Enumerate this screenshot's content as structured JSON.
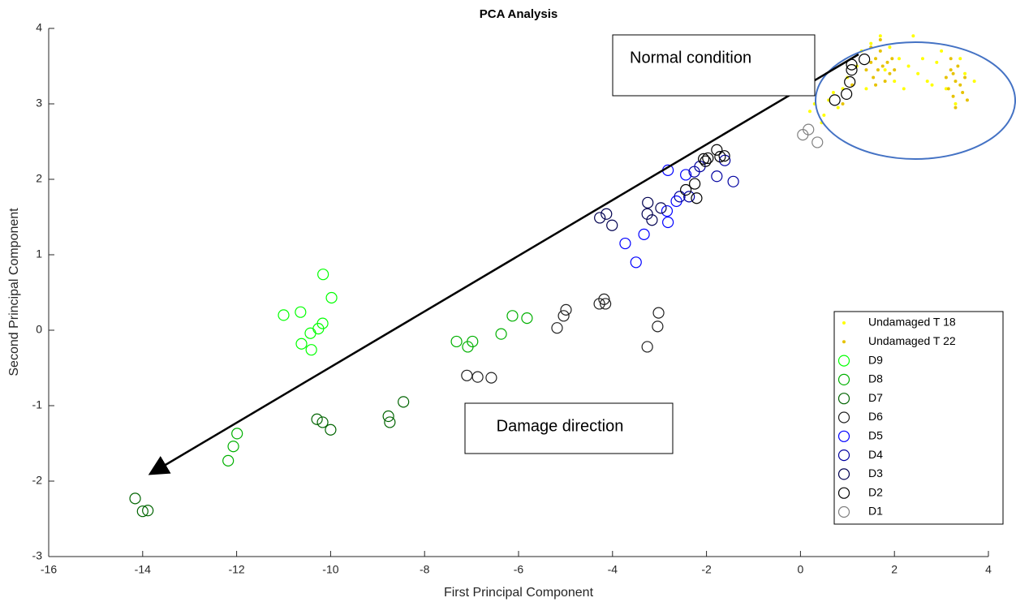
{
  "chart_data": {
    "type": "scatter",
    "title": "PCA Analysis",
    "x_label": "First Principal Component",
    "y_label": "Second Principal Component",
    "annotations": [
      "Normal condition",
      "Damage direction"
    ],
    "xlim": [
      -16,
      4
    ],
    "ylim": [
      -3,
      4
    ],
    "xticks": [
      -16,
      -14,
      -12,
      -10,
      -8,
      -6,
      -4,
      -2,
      0,
      2,
      4
    ],
    "yticks": [
      -3,
      -2,
      -1,
      0,
      1,
      2,
      3,
      4
    ],
    "grid": false,
    "legend": "southeast",
    "series": [
      {
        "name": "Undamaged T 18",
        "color": "#ffff00",
        "marker": "dot",
        "x": [
          0.2,
          0.3,
          0.45,
          0.6,
          0.8,
          0.9,
          1.0,
          1.2,
          1.3,
          1.5,
          1.7,
          1.9,
          2.1,
          2.3,
          2.5,
          2.7,
          2.9,
          3.0,
          3.1,
          3.3,
          3.5,
          3.7,
          2.0,
          2.2,
          1.4,
          0.5,
          0.7,
          1.8,
          2.6,
          2.4,
          3.4,
          2.8
        ],
        "values": [
          2.9,
          3.0,
          2.75,
          3.05,
          2.95,
          3.2,
          3.35,
          3.5,
          3.7,
          3.8,
          3.9,
          3.75,
          3.6,
          3.5,
          3.4,
          3.3,
          3.55,
          3.7,
          3.2,
          3.0,
          3.4,
          3.3,
          3.3,
          3.2,
          3.2,
          2.85,
          3.15,
          3.45,
          3.6,
          3.9,
          3.6,
          3.25
        ]
      },
      {
        "name": "Undamaged T 22",
        "color": "#e6c200",
        "marker": "dot",
        "x": [
          1.4,
          1.5,
          1.55,
          1.6,
          1.65,
          1.7,
          1.75,
          1.8,
          1.85,
          1.9,
          1.6,
          1.5,
          1.95,
          2.0,
          1.7,
          3.1,
          3.15,
          3.2,
          3.25,
          3.3,
          3.35,
          3.4,
          3.45,
          3.5,
          3.3,
          3.2,
          3.55,
          3.25,
          0.9,
          1.1
        ],
        "values": [
          3.45,
          3.55,
          3.35,
          3.6,
          3.45,
          3.7,
          3.5,
          3.3,
          3.55,
          3.4,
          3.25,
          3.75,
          3.6,
          3.45,
          3.85,
          3.35,
          3.2,
          3.45,
          3.1,
          3.3,
          3.5,
          3.25,
          3.15,
          3.35,
          2.95,
          3.6,
          3.05,
          3.4,
          3.0,
          3.25
        ]
      },
      {
        "name": "D9",
        "color": "#00ff00",
        "marker": "circle",
        "x": [
          -11.0,
          -10.64,
          -10.16,
          -9.98,
          -10.17,
          -10.26,
          -10.43,
          -10.62,
          -10.41
        ],
        "values": [
          0.2,
          0.24,
          0.74,
          0.43,
          0.09,
          0.02,
          -0.04,
          -0.18,
          -0.26
        ]
      },
      {
        "name": "D8",
        "color": "#00b000",
        "marker": "circle",
        "x": [
          -7.32,
          -7.08,
          -6.98,
          -6.37,
          -6.13,
          -5.82,
          -11.99,
          -12.07,
          -12.18
        ],
        "values": [
          -0.15,
          -0.22,
          -0.15,
          -0.05,
          0.19,
          0.16,
          -1.37,
          -1.54,
          -1.73
        ]
      },
      {
        "name": "D7",
        "color": "#006400",
        "marker": "circle",
        "x": [
          -14.16,
          -14.0,
          -13.89,
          -10.29,
          -10.17,
          -10.0,
          -8.77,
          -8.74,
          -8.45
        ],
        "values": [
          -2.23,
          -2.4,
          -2.39,
          -1.18,
          -1.22,
          -1.32,
          -1.14,
          -1.22,
          -0.95
        ]
      },
      {
        "name": "D6",
        "color": "#202020",
        "marker": "circle",
        "x": [
          -7.1,
          -6.87,
          -6.58,
          -5.18,
          -5.04,
          -4.99,
          -4.28,
          -4.18,
          -4.15,
          -3.02,
          -3.04,
          -3.26
        ],
        "values": [
          -0.6,
          -0.62,
          -0.63,
          0.03,
          0.19,
          0.27,
          0.35,
          0.41,
          0.35,
          0.23,
          0.05,
          -0.22
        ]
      },
      {
        "name": "D5",
        "color": "#0000ff",
        "marker": "circle",
        "x": [
          -2.82,
          -3.5,
          -3.73,
          -3.33,
          -2.82,
          -2.84,
          -2.64,
          -2.44
        ],
        "values": [
          2.12,
          0.9,
          1.15,
          1.27,
          1.43,
          1.58,
          1.71,
          2.06
        ]
      },
      {
        "name": "D4",
        "color": "#0000a0",
        "marker": "circle",
        "x": [
          -2.57,
          -2.37,
          -2.26,
          -2.14,
          -1.78,
          -1.61,
          -1.43
        ],
        "values": [
          1.77,
          1.77,
          2.1,
          2.17,
          2.04,
          2.25,
          1.97
        ]
      },
      {
        "name": "D3",
        "color": "#000050",
        "marker": "circle",
        "x": [
          -4.27,
          -4.13,
          -4.01,
          -3.25,
          -3.26,
          -3.16,
          -2.97
        ],
        "values": [
          1.49,
          1.54,
          1.39,
          1.69,
          1.54,
          1.46,
          1.62
        ]
      },
      {
        "name": "D2",
        "color": "#000000",
        "marker": "circle",
        "x": [
          -2.44,
          -2.25,
          -2.21,
          -2.06,
          -1.97,
          -2.02,
          -1.78,
          -1.71,
          -1.62,
          0.73,
          0.98,
          1.05,
          1.09,
          1.09,
          1.36
        ],
        "values": [
          1.86,
          1.94,
          1.75,
          2.27,
          2.28,
          2.24,
          2.39,
          2.3,
          2.31,
          3.05,
          3.13,
          3.29,
          3.45,
          3.52,
          3.59
        ]
      },
      {
        "name": "D1",
        "color": "#808080",
        "marker": "circle",
        "x": [
          0.05,
          0.17,
          0.36
        ],
        "values": [
          2.59,
          2.66,
          2.49
        ]
      }
    ]
  }
}
